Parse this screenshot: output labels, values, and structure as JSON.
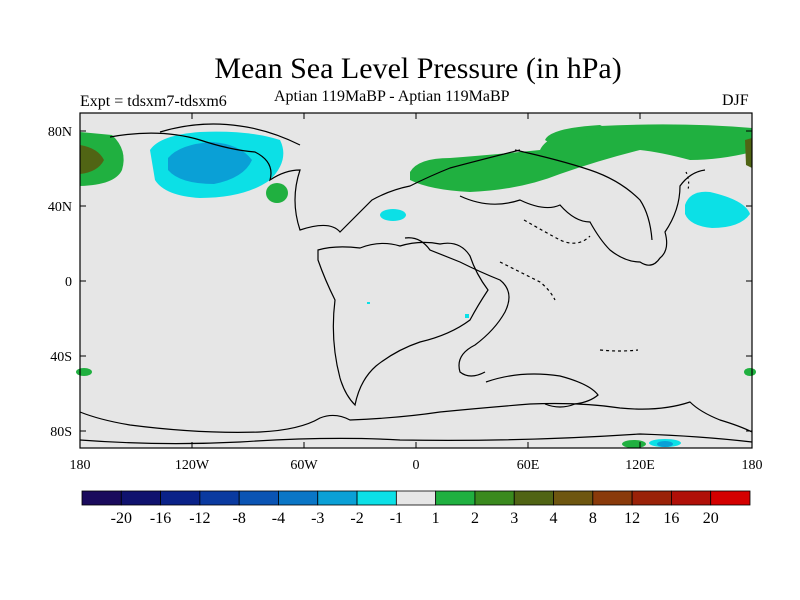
{
  "title": "Mean Sea Level Pressure (in hPa)",
  "expt_label": "Expt = tdsxm7-tdsxm6",
  "subtitle": "Aptian   119MaBP - Aptian   119MaBP",
  "season": "DJF",
  "map": {
    "lat_ticks": [
      "80N",
      "40N",
      "0",
      "40S",
      "80S"
    ],
    "lon_ticks": [
      "180",
      "120W",
      "60W",
      "0",
      "60E",
      "120E",
      "180"
    ],
    "background_color": "#e6e6e6"
  },
  "colorbar": {
    "colors": [
      "#1a0a5c",
      "#10126e",
      "#0a2288",
      "#0a3aa0",
      "#0a54b4",
      "#0a76c6",
      "#0aa0d6",
      "#0ce0e6",
      "#e6e6e6",
      "#20b040",
      "#3a8a1e",
      "#506414",
      "#6e5610",
      "#8a3a0a",
      "#9a2208",
      "#b01008",
      "#d40000"
    ],
    "labels": [
      "-20",
      "-16",
      "-12",
      "-8",
      "-4",
      "-3",
      "-2",
      "-1",
      "1",
      "2",
      "3",
      "4",
      "8",
      "12",
      "16",
      "20"
    ]
  }
}
